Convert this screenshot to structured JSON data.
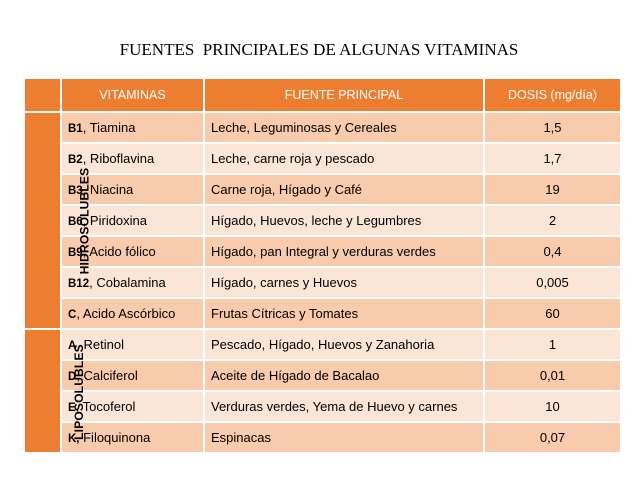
{
  "title": "FUENTES  PRINCIPALES DE ALGUNAS VITAMINAS",
  "headers": {
    "corner": "",
    "vitaminas": "VITAMINAS",
    "fuente": "FUENTE PRINCIPAL",
    "dosis": "DOSIS (mg/día)"
  },
  "groups": {
    "hidro": "HIDROSOLUBLES",
    "lipo": "LIPOSOLUBLES"
  },
  "rows": [
    {
      "code": "B1",
      "name": ", Tiamina",
      "fuente": "Leche, Leguminosas y Cereales",
      "dosis": "1,5"
    },
    {
      "code": "B2",
      "name": ", Riboflavina",
      "fuente": "Leche, carne roja y pescado",
      "dosis": "1,7"
    },
    {
      "code": "B3",
      "name": ", Niacina",
      "fuente": "Carne roja, Hígado y Café",
      "dosis": "19"
    },
    {
      "code": "B6",
      "name": ", Piridoxina",
      "fuente": "Hígado, Huevos, leche y Legumbres",
      "dosis": "2"
    },
    {
      "code": "B9",
      "name": ", Acido fólico",
      "fuente": "Hígado, pan Integral y verduras verdes",
      "dosis": "0,4"
    },
    {
      "code": "B12",
      "name": ", Cobalamina",
      "fuente": "Hígado, carnes y Huevos",
      "dosis": "0,005"
    },
    {
      "code": "C",
      "name": ", Acido Ascórbico",
      "fuente": "Frutas Cítricas y Tomates",
      "dosis": "60"
    },
    {
      "code": "A",
      "name": ", Retinol",
      "fuente": "Pescado, Hígado, Huevos y Zanahoria",
      "dosis": "1"
    },
    {
      "code": "D",
      "name": ", Calciferol",
      "fuente": "Aceite de Hígado de Bacalao",
      "dosis": "0,01"
    },
    {
      "code": "E",
      "name": ", Tocoferol",
      "fuente": "Verduras verdes, Yema de Huevo y carnes",
      "dosis": "10"
    },
    {
      "code": "K,",
      "name": " Filoquinona",
      "fuente": "Espinacas",
      "dosis": "0,07"
    }
  ],
  "colors": {
    "header": "#ed7d31",
    "row_dark": "#f8cbad",
    "row_light": "#fbe5d6"
  }
}
